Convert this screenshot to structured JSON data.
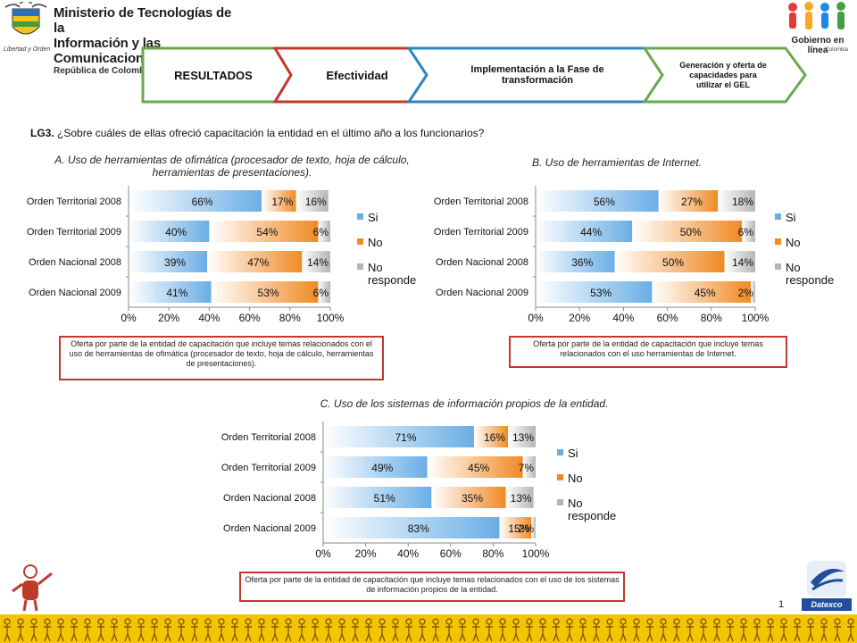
{
  "header": {
    "ministry_line1": "Ministerio de Tecnologías de la",
    "ministry_line2": "Información y las Comunicaciones",
    "ministry_line3": "República de Colombia",
    "motto": "Libertad y Orden",
    "gel_logo_line1": "Gobierno en línea",
    "gel_logo_line2": "Colombia"
  },
  "nav": {
    "steps": [
      {
        "label": "RESULTADOS"
      },
      {
        "label": "Efectividad"
      },
      {
        "label": "Implementación  a la Fase de transformación"
      },
      {
        "label": "Generación y oferta de capacidades para utilizar el GEL"
      }
    ]
  },
  "question": {
    "code": "LG3.",
    "text": "¿Sobre cuáles de ellas ofreció capacitación la entidad en el último año a los  funcionarios?"
  },
  "colors": {
    "si": "#a9d2f5",
    "no": "#fbb36a",
    "nr": "#d6d6d6",
    "note_border": "#c0392b",
    "nav_green": "#6aa84f",
    "nav_red": "#c0392b",
    "nav_blue": "#2e86c1",
    "footer_yellow": "#f2c500"
  },
  "chart_data": [
    {
      "type": "bar",
      "orientation": "horizontal-stacked",
      "title": "A. Uso de herramientas  de ofimática (procesador de texto, hoja de cálculo, herramientas  de presentaciones).",
      "categories": [
        "Orden Territorial 2008",
        "Orden Territorial 2009",
        "Orden Nacional 2008",
        "Orden Nacional 2009"
      ],
      "series": [
        {
          "name": "Si",
          "values": [
            66,
            40,
            39,
            41
          ]
        },
        {
          "name": "No",
          "values": [
            17,
            54,
            47,
            53
          ]
        },
        {
          "name": "No responde",
          "values": [
            16,
            6,
            14,
            6
          ]
        }
      ],
      "xticks": [
        "0%",
        "20%",
        "40%",
        "60%",
        "80%",
        "100%"
      ],
      "xlim": [
        0,
        100
      ],
      "legend": "right",
      "note": "Oferta por parte de la entidad de capacitación que incluye temas relacionados con el uso de herramientas de ofimática (procesador de texto, hoja de cálculo, herramientas de presentaciones)."
    },
    {
      "type": "bar",
      "orientation": "horizontal-stacked",
      "title": "B. Uso de  herramientas de Internet.",
      "categories": [
        "Orden Territorial 2008",
        "Orden Territorial 2009",
        "Orden Nacional 2008",
        "Orden Nacional 2009"
      ],
      "series": [
        {
          "name": "Si",
          "values": [
            56,
            44,
            36,
            53
          ]
        },
        {
          "name": "No",
          "values": [
            27,
            50,
            50,
            45
          ]
        },
        {
          "name": "No responde",
          "values": [
            18,
            6,
            14,
            2
          ]
        }
      ],
      "xticks": [
        "0%",
        "20%",
        "40%",
        "60%",
        "80%",
        "100%"
      ],
      "xlim": [
        0,
        100
      ],
      "legend": "right",
      "note": "Oferta por parte de la entidad de capacitación que incluye temas relacionados con el uso herramientas de Internet."
    },
    {
      "type": "bar",
      "orientation": "horizontal-stacked",
      "title": "C. Uso de los sistemas de información propios de la entidad.",
      "categories": [
        "Orden Territorial 2008",
        "Orden Territorial 2009",
        "Orden Nacional 2008",
        "Orden Nacional 2009"
      ],
      "series": [
        {
          "name": "Si",
          "values": [
            71,
            49,
            51,
            83
          ]
        },
        {
          "name": "No",
          "values": [
            16,
            45,
            35,
            15
          ]
        },
        {
          "name": "No responde",
          "values": [
            13,
            7,
            13,
            2
          ]
        }
      ],
      "xticks": [
        "0%",
        "20%",
        "40%",
        "60%",
        "80%",
        "100%"
      ],
      "xlim": [
        0,
        100
      ],
      "legend": "right",
      "note": "Oferta por parte de la entidad de capacitación que incluye temas relacionados con el uso de los sistemas de información propios de la entidad."
    }
  ],
  "footer": {
    "page_number": "1",
    "brand": "Datexco"
  }
}
